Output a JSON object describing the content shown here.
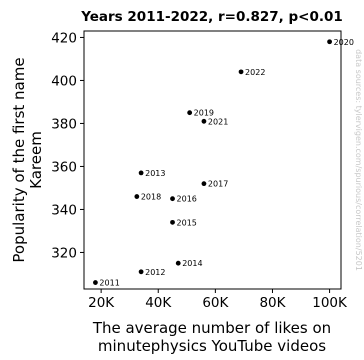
{
  "chart_data": {
    "type": "scatter",
    "title": "Years 2011-2022, r=0.827, p<0.01",
    "xlabel": "The average number of likes on minutephysics YouTube videos",
    "ylabel": "Popularity of the first name Kareem",
    "xlim": [
      14000,
      104000
    ],
    "ylim": [
      303,
      423
    ],
    "x_ticks": [
      20000,
      40000,
      60000,
      80000,
      100000
    ],
    "x_tick_labels": [
      "20K",
      "40K",
      "60K",
      "80K",
      "100K"
    ],
    "y_ticks": [
      320,
      340,
      360,
      380,
      400,
      420
    ],
    "y_tick_labels": [
      "320",
      "340",
      "360",
      "380",
      "400",
      "420"
    ],
    "grid": false,
    "legend": "none",
    "point_color": "#000000",
    "watermark": "data sources: tylervigen.com/spurious/correlation/5201",
    "points": [
      {
        "label": "2011",
        "x": 18000,
        "y": 306
      },
      {
        "label": "2012",
        "x": 34000,
        "y": 311
      },
      {
        "label": "2013",
        "x": 34000,
        "y": 357
      },
      {
        "label": "2014",
        "x": 47000,
        "y": 315
      },
      {
        "label": "2015",
        "x": 45000,
        "y": 334
      },
      {
        "label": "2016",
        "x": 45000,
        "y": 345
      },
      {
        "label": "2017",
        "x": 56000,
        "y": 352
      },
      {
        "label": "2018",
        "x": 32500,
        "y": 346
      },
      {
        "label": "2019",
        "x": 51000,
        "y": 385
      },
      {
        "label": "2020",
        "x": 100000,
        "y": 418
      },
      {
        "label": "2021",
        "x": 56000,
        "y": 381
      },
      {
        "label": "2022",
        "x": 69000,
        "y": 404
      }
    ]
  }
}
